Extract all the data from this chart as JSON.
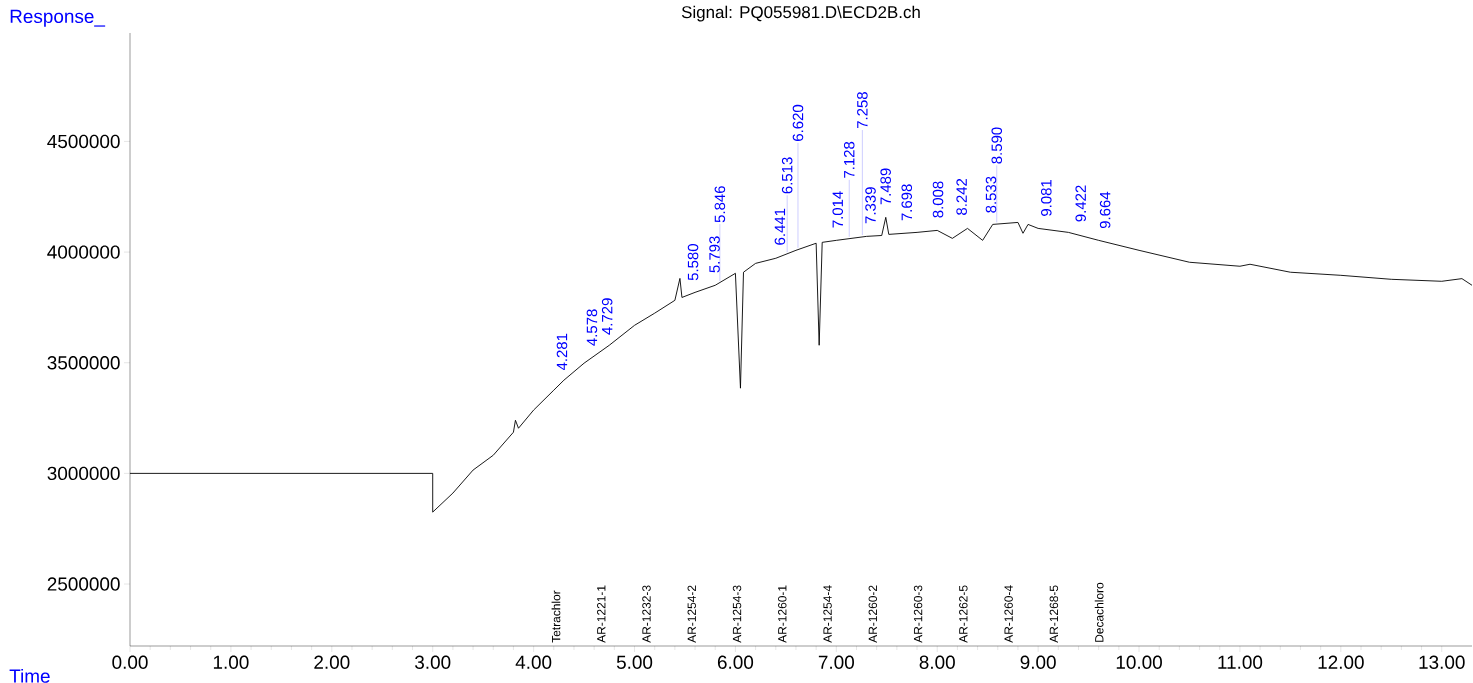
{
  "chart_data": {
    "type": "line",
    "title": "Signal: PQ055981.D\\ECD2B.ch",
    "xlabel": "Time",
    "ylabel": "Response_",
    "xlim": [
      0,
      13.3
    ],
    "ylim": [
      2220000,
      4990000
    ],
    "xticks": [
      {
        "value": 0,
        "label": "0.00"
      },
      {
        "value": 1,
        "label": "1.00"
      },
      {
        "value": 2,
        "label": "2.00"
      },
      {
        "value": 3,
        "label": "3.00"
      },
      {
        "value": 4,
        "label": "4.00"
      },
      {
        "value": 5,
        "label": "5.00"
      },
      {
        "value": 6,
        "label": "6.00"
      },
      {
        "value": 7,
        "label": "7.00"
      },
      {
        "value": 8,
        "label": "8.00"
      },
      {
        "value": 9,
        "label": "9.00"
      },
      {
        "value": 10,
        "label": "10.00"
      },
      {
        "value": 11,
        "label": "11.00"
      },
      {
        "value": 12,
        "label": "12.00"
      },
      {
        "value": 13,
        "label": "13.00"
      }
    ],
    "yticks": [
      2500000,
      3000000,
      3500000,
      4000000,
      4500000
    ],
    "series": [
      {
        "color": "#000000",
        "x": [
          0,
          3.0,
          3.0,
          3.2,
          3.4,
          3.6,
          3.8,
          3.82,
          3.85,
          4.0,
          4.2,
          4.3,
          4.5,
          4.75,
          5.0,
          5.2,
          5.4,
          5.45,
          5.47,
          5.6,
          5.8,
          6.0,
          6.05,
          6.08,
          6.2,
          6.4,
          6.6,
          6.8,
          6.83,
          6.86,
          7.0,
          7.3,
          7.45,
          7.49,
          7.52,
          7.8,
          8.0,
          8.15,
          8.3,
          8.45,
          8.55,
          8.8,
          8.85,
          8.9,
          9.0,
          9.3,
          9.6,
          10.0,
          10.5,
          11.0,
          11.1,
          11.5,
          12.0,
          12.5,
          13.0,
          13.2,
          13.3
        ],
        "values": [
          3000000,
          3000000,
          2825000,
          2911000,
          3015000,
          3082000,
          3186000,
          3240000,
          3204000,
          3286000,
          3376000,
          3421000,
          3498000,
          3579000,
          3669000,
          3724000,
          3782000,
          3881000,
          3795000,
          3818000,
          3850000,
          3904000,
          3385000,
          3909000,
          3949000,
          3972000,
          4008000,
          4040000,
          3579000,
          4044000,
          4053000,
          4071000,
          4075000,
          4157000,
          4080000,
          4089000,
          4098000,
          4062000,
          4107000,
          4053000,
          4125000,
          4134000,
          4085000,
          4125000,
          4107000,
          4089000,
          4053000,
          4008000,
          3954000,
          3936000,
          3945000,
          3909000,
          3895000,
          3877000,
          3868000,
          3880000,
          3850000
        ]
      }
    ],
    "annotations": [
      {
        "text": "4.281",
        "x": 4.281,
        "y": 3410000
      },
      {
        "text": "4.578",
        "x": 4.578,
        "y": 3520000
      },
      {
        "text": "4.729",
        "x": 4.729,
        "y": 3570000
      },
      {
        "text": "5.580",
        "x": 5.58,
        "y": 3815000
      },
      {
        "text": "5.793",
        "x": 5.793,
        "y": 3850000
      },
      {
        "text": "5.846",
        "x": 5.846,
        "y": 3860000
      },
      {
        "text": "6.441",
        "x": 6.441,
        "y": 3975000
      },
      {
        "text": "6.513",
        "x": 6.513,
        "y": 3990000
      },
      {
        "text": "6.620",
        "x": 6.62,
        "y": 4010000
      },
      {
        "text": "7.014",
        "x": 7.014,
        "y": 4053000
      },
      {
        "text": "7.128",
        "x": 7.128,
        "y": 4060000
      },
      {
        "text": "7.258",
        "x": 7.258,
        "y": 4068000
      },
      {
        "text": "7.339",
        "x": 7.339,
        "y": 4072000
      },
      {
        "text": "7.489",
        "x": 7.489,
        "y": 4157000
      },
      {
        "text": "7.698",
        "x": 7.698,
        "y": 4085000
      },
      {
        "text": "8.008",
        "x": 8.008,
        "y": 4098000
      },
      {
        "text": "8.242",
        "x": 8.242,
        "y": 4110000
      },
      {
        "text": "8.533",
        "x": 8.533,
        "y": 4120000
      },
      {
        "text": "8.590",
        "x": 8.59,
        "y": 4125000
      },
      {
        "text": "9.081",
        "x": 9.081,
        "y": 4105000
      },
      {
        "text": "9.422",
        "x": 9.422,
        "y": 4080000
      },
      {
        "text": "9.664",
        "x": 9.664,
        "y": 4050000
      },
      "Tetrachlor",
      "AR-1221-1",
      "AR-1232-3",
      "AR-1254-2",
      "AR-1254-3",
      "AR-1260-1",
      "AR-1254-4",
      "AR-1260-2",
      "AR-1260-3",
      "AR-1262-5",
      "AR-1260-4",
      "AR-1268-5",
      "Decachloro"
    ]
  }
}
